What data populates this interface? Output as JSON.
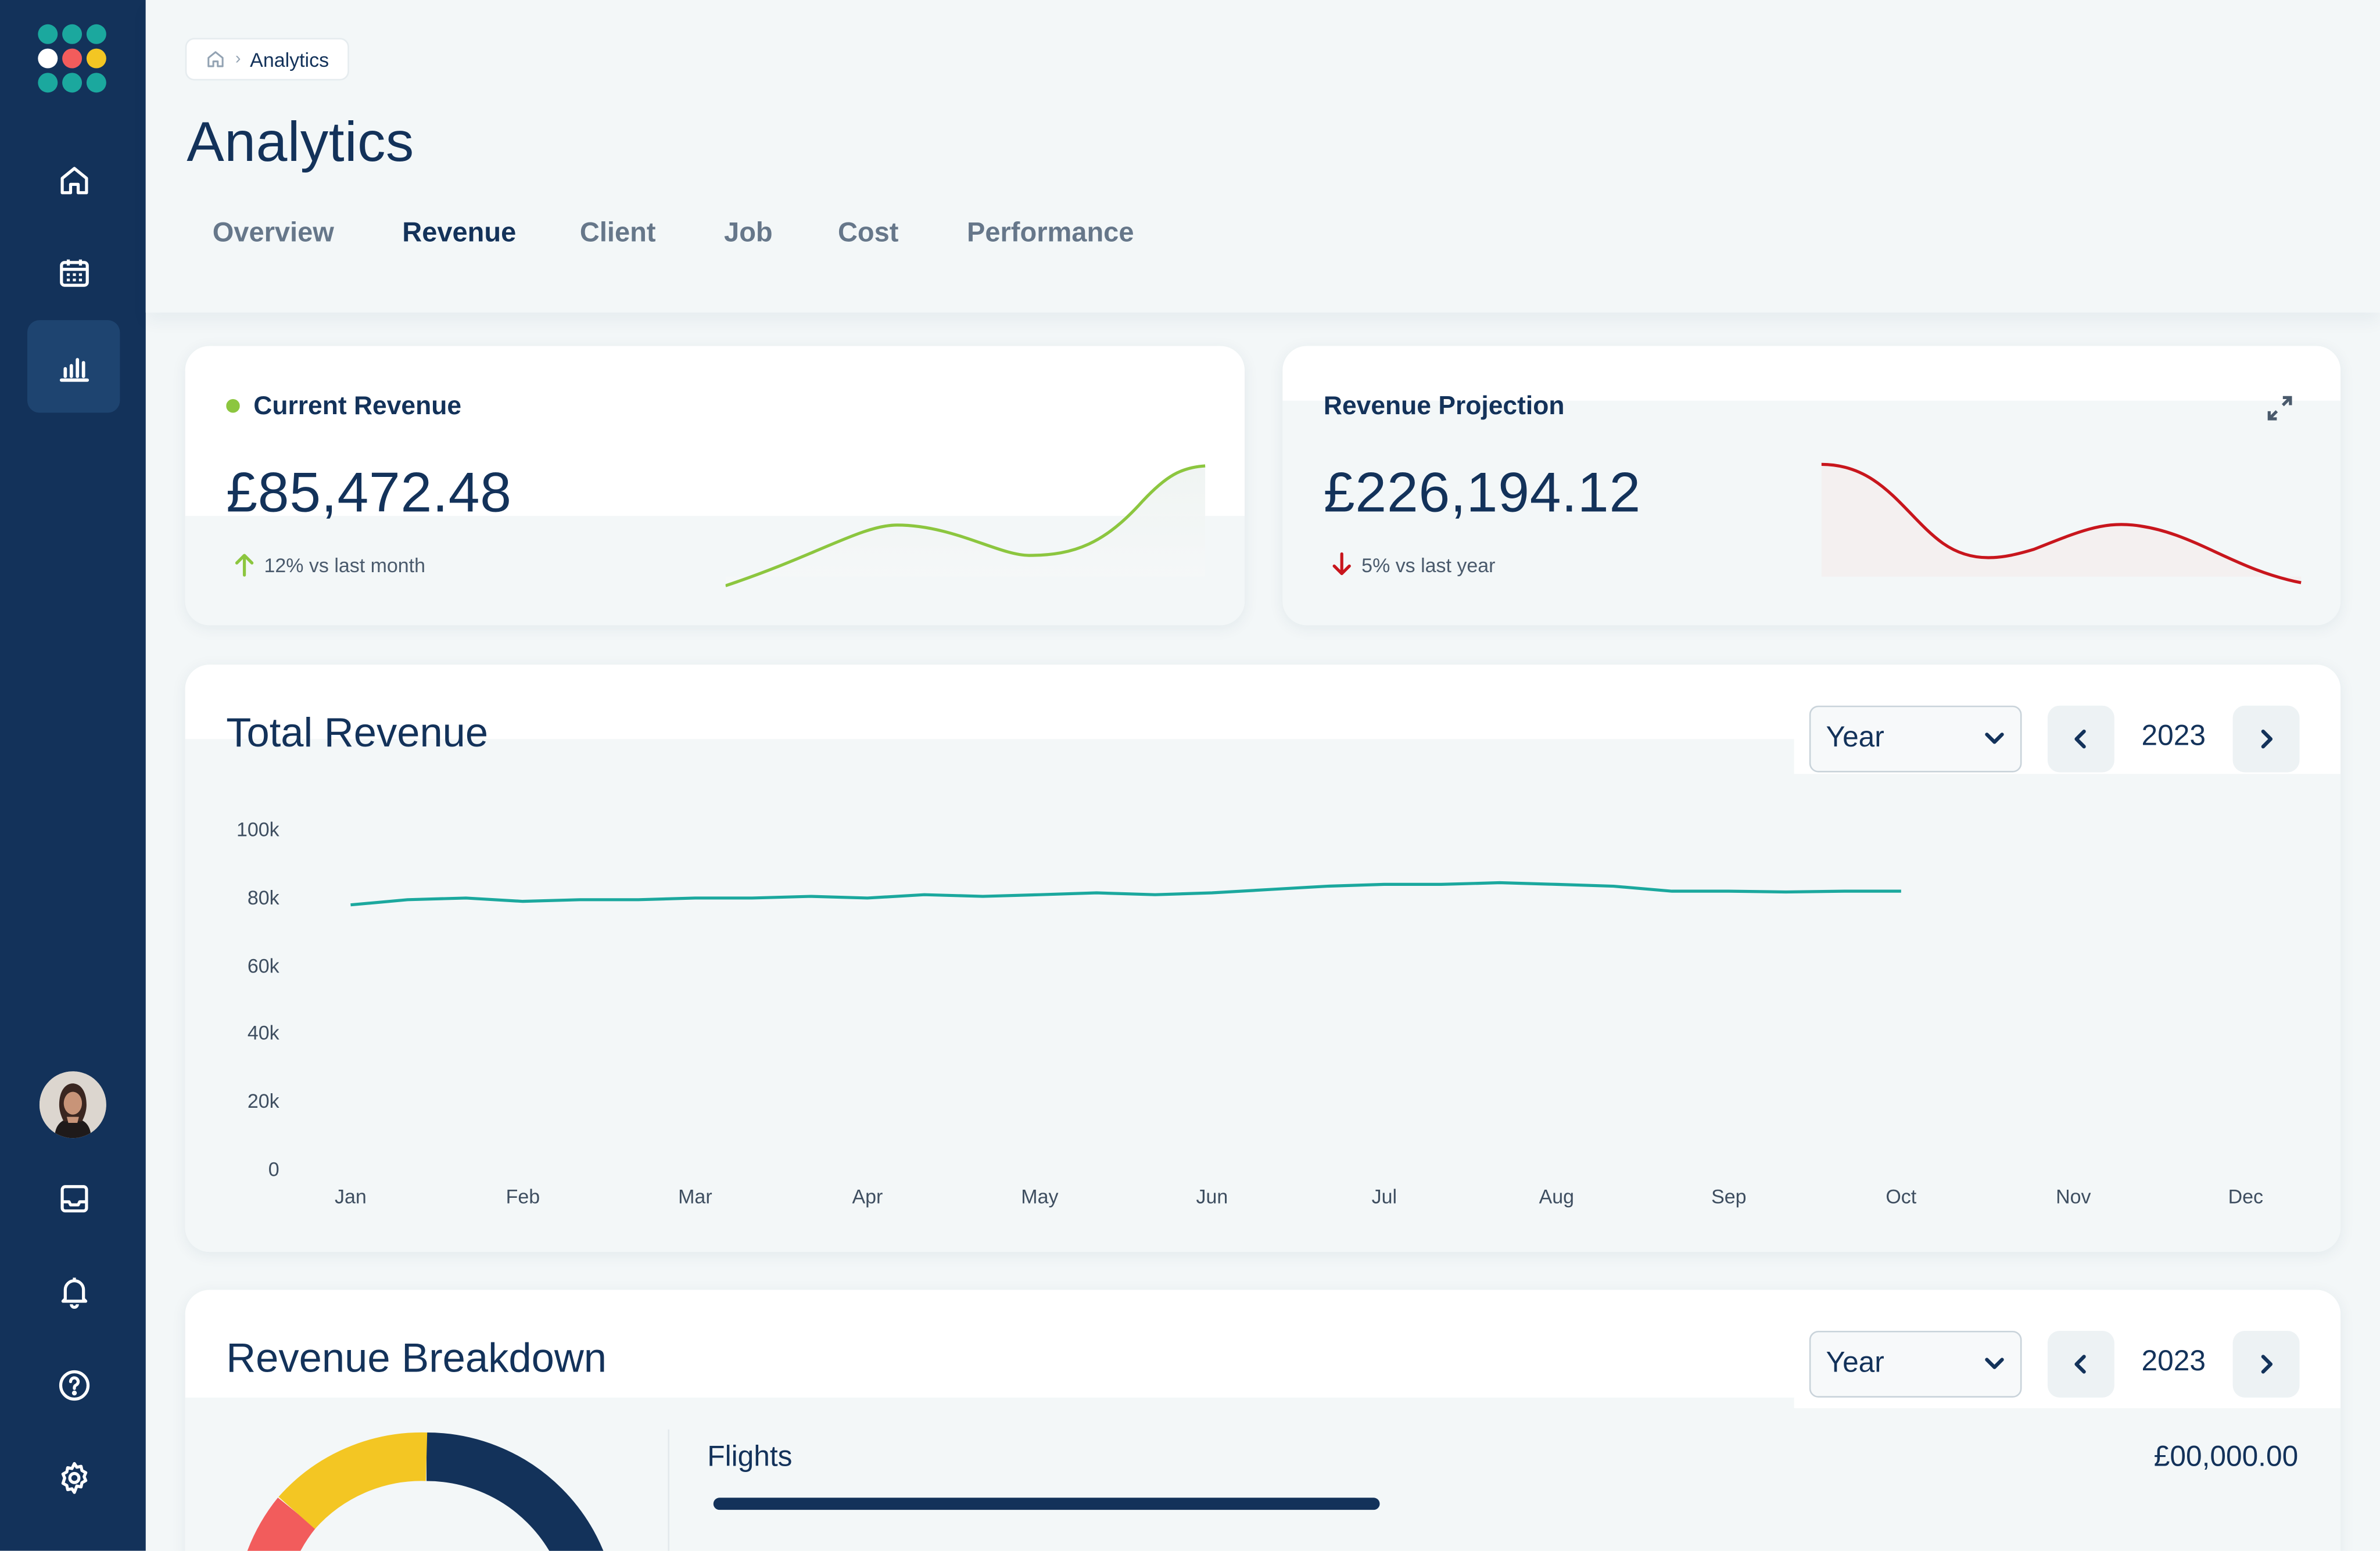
{
  "breadcrumb": {
    "current": "Analytics"
  },
  "page": {
    "title": "Analytics"
  },
  "tabs": [
    {
      "label": "Overview",
      "active": false
    },
    {
      "label": "Revenue",
      "active": true
    },
    {
      "label": "Client",
      "active": false
    },
    {
      "label": "Job",
      "active": false
    },
    {
      "label": "Cost",
      "active": false
    },
    {
      "label": "Performance",
      "active": false
    }
  ],
  "sidebar": {
    "nav_icons": [
      "home-icon",
      "calendar-icon",
      "bar-chart-icon"
    ],
    "active_icon": "bar-chart-icon",
    "bottom_icons": [
      "inbox-icon",
      "bell-icon",
      "help-icon",
      "settings-icon"
    ]
  },
  "current_revenue": {
    "label": "Current Revenue",
    "value": "£85,472.48",
    "delta": "12% vs last month",
    "trend": "up",
    "color": "#8cc63f"
  },
  "revenue_projection": {
    "label": "Revenue Projection",
    "value": "£226,194.12",
    "delta": "5% vs last year",
    "trend": "down",
    "color": "#c8161d"
  },
  "total_revenue": {
    "title": "Total Revenue",
    "period_select": "Year",
    "year": "2023"
  },
  "revenue_breakdown": {
    "title": "Revenue Breakdown",
    "period_select": "Year",
    "year": "2023",
    "items": [
      {
        "label": "Flights",
        "value": "£00,000.00"
      }
    ],
    "donut": [
      {
        "name": "segment-navy",
        "share": 0.5,
        "color": "#13325a"
      },
      {
        "name": "segment-red",
        "share": 0.25,
        "color": "#f25c5c"
      },
      {
        "name": "segment-yellow",
        "share": 0.15,
        "color": "#f3c623"
      }
    ]
  },
  "colors": {
    "brand_navy": "#13325a",
    "teal": "#1ba89e",
    "green": "#8cc63f",
    "red": "#c8161d",
    "yellow": "#f3c623",
    "coral": "#f25c5c"
  },
  "chart_data": {
    "type": "line",
    "title": "Total Revenue",
    "categories": [
      "Jan",
      "Feb",
      "Mar",
      "Apr",
      "May",
      "Jun",
      "Jul",
      "Aug",
      "Sep",
      "Oct",
      "Nov",
      "Dec"
    ],
    "y_ticks": [
      "100k",
      "80k",
      "60k",
      "40k",
      "20k",
      "0"
    ],
    "ylim": [
      0,
      100000
    ],
    "grid": false,
    "series": [
      {
        "color": "#1ba89e",
        "x": [
          0,
          0.33,
          0.67,
          1,
          1.33,
          1.67,
          2,
          2.33,
          2.67,
          3,
          3.33,
          3.67,
          4,
          4.33,
          4.67,
          5,
          5.33,
          5.67,
          6,
          6.33,
          6.67,
          7,
          7.33,
          7.67,
          8,
          8.33,
          8.67,
          9
        ],
        "y": [
          78000,
          79500,
          80000,
          79000,
          79500,
          79500,
          80000,
          80000,
          80500,
          80000,
          81000,
          80500,
          81000,
          81500,
          81000,
          81500,
          82500,
          83500,
          84000,
          84000,
          84500,
          84000,
          83500,
          82000,
          82000,
          81800,
          82000,
          82000
        ]
      }
    ]
  }
}
